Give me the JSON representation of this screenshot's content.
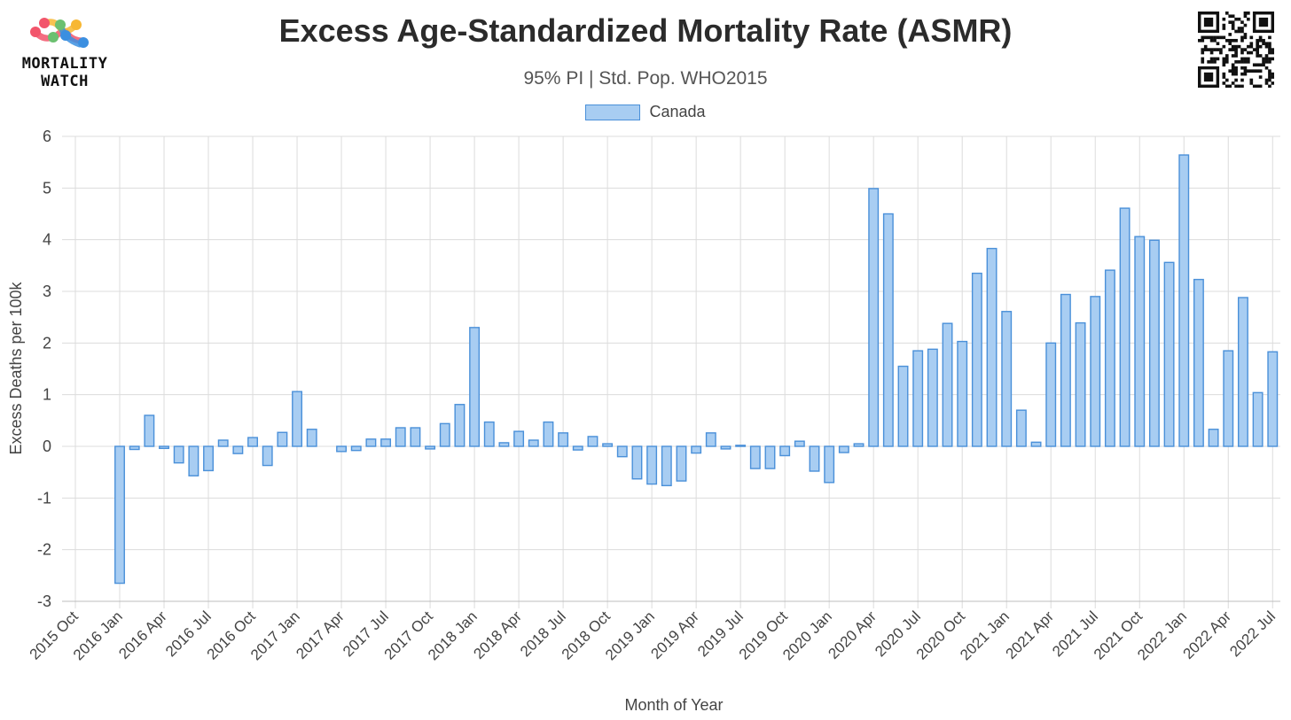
{
  "brand": {
    "logo_line1": "MORTALITY",
    "logo_line2": "WATCH",
    "logo_colors": [
      "#f2556b",
      "#f7b733",
      "#6cc070",
      "#3b8fe0"
    ]
  },
  "chart_data": {
    "type": "bar",
    "title": "Excess Age-Standardized Mortality Rate (ASMR)",
    "subtitle": "95% PI | Std. Pop. WHO2015",
    "xlabel": "Month of Year",
    "ylabel": "Excess Deaths per 100k",
    "ylim": [
      -3,
      6
    ],
    "yticks": [
      -3,
      -2,
      -1,
      0,
      1,
      2,
      3,
      4,
      5,
      6
    ],
    "grid": true,
    "legend_position": "top-center",
    "bar_fill": "#a8cdf2",
    "bar_stroke": "#4a90d9",
    "x_tick_labels": [
      "2015 Oct",
      "2016 Jan",
      "2016 Apr",
      "2016 Jul",
      "2016 Oct",
      "2017 Jan",
      "2017 Apr",
      "2017 Jul",
      "2017 Oct",
      "2018 Jan",
      "2018 Apr",
      "2018 Jul",
      "2018 Oct",
      "2019 Jan",
      "2019 Apr",
      "2019 Jul",
      "2019 Oct",
      "2020 Jan",
      "2020 Apr",
      "2020 Jul",
      "2020 Oct",
      "2021 Jan",
      "2021 Apr",
      "2021 Jul",
      "2021 Oct",
      "2022 Jan",
      "2022 Apr",
      "2022 Jul"
    ],
    "categories": [
      "2015 Oct",
      "2015 Nov",
      "2015 Dec",
      "2016 Jan",
      "2016 Feb",
      "2016 Mar",
      "2016 Apr",
      "2016 May",
      "2016 Jun",
      "2016 Jul",
      "2016 Aug",
      "2016 Sep",
      "2016 Oct",
      "2016 Nov",
      "2016 Dec",
      "2017 Jan",
      "2017 Feb",
      "2017 Mar",
      "2017 Apr",
      "2017 May",
      "2017 Jun",
      "2017 Jul",
      "2017 Aug",
      "2017 Sep",
      "2017 Oct",
      "2017 Nov",
      "2017 Dec",
      "2018 Jan",
      "2018 Feb",
      "2018 Mar",
      "2018 Apr",
      "2018 May",
      "2018 Jun",
      "2018 Jul",
      "2018 Aug",
      "2018 Sep",
      "2018 Oct",
      "2018 Nov",
      "2018 Dec",
      "2019 Jan",
      "2019 Feb",
      "2019 Mar",
      "2019 Apr",
      "2019 May",
      "2019 Jun",
      "2019 Jul",
      "2019 Aug",
      "2019 Sep",
      "2019 Oct",
      "2019 Nov",
      "2019 Dec",
      "2020 Jan",
      "2020 Feb",
      "2020 Mar",
      "2020 Apr",
      "2020 May",
      "2020 Jun",
      "2020 Jul",
      "2020 Aug",
      "2020 Sep",
      "2020 Oct",
      "2020 Nov",
      "2020 Dec",
      "2021 Jan",
      "2021 Feb",
      "2021 Mar",
      "2021 Apr",
      "2021 May",
      "2021 Jun",
      "2021 Jul",
      "2021 Aug",
      "2021 Sep",
      "2021 Oct",
      "2021 Nov",
      "2021 Dec",
      "2022 Jan",
      "2022 Feb",
      "2022 Mar",
      "2022 Apr",
      "2022 May",
      "2022 Jun",
      "2022 Jul"
    ],
    "series": [
      {
        "name": "Canada",
        "values": [
          null,
          null,
          null,
          -2.65,
          -0.06,
          0.6,
          -0.04,
          -0.32,
          -0.57,
          -0.47,
          0.12,
          -0.14,
          0.17,
          -0.37,
          0.27,
          1.06,
          0.33,
          null,
          -0.1,
          -0.08,
          0.14,
          0.14,
          0.36,
          0.36,
          -0.05,
          0.44,
          0.81,
          2.3,
          0.47,
          0.07,
          0.29,
          0.12,
          0.47,
          0.26,
          -0.07,
          0.19,
          0.05,
          -0.2,
          -0.63,
          -0.73,
          -0.76,
          -0.67,
          -0.13,
          0.26,
          -0.05,
          0.02,
          -0.43,
          -0.43,
          -0.18,
          0.1,
          -0.48,
          -0.7,
          -0.12,
          0.05,
          4.99,
          4.5,
          1.55,
          1.85,
          1.88,
          2.38,
          2.03,
          3.35,
          3.83,
          2.61,
          0.7,
          0.08,
          2.0,
          2.94,
          2.39,
          2.9,
          3.41,
          4.61,
          4.06,
          3.99,
          3.56,
          5.64,
          3.23,
          0.33,
          1.85,
          2.88,
          1.04,
          1.83
        ]
      }
    ]
  }
}
